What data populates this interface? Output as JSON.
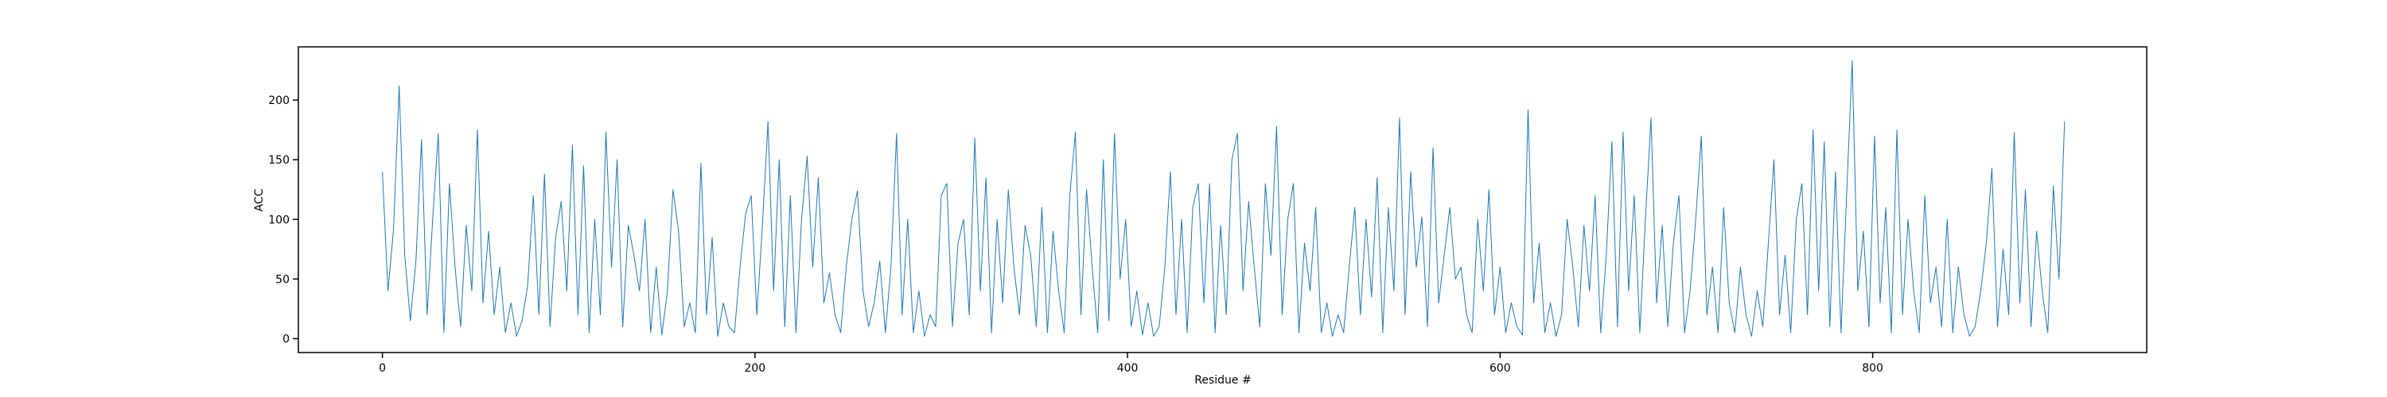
{
  "chart_data": {
    "type": "line",
    "x_label": "Residue #",
    "y_label": "ACC",
    "x": [
      0,
      3,
      6,
      9,
      12,
      15,
      18,
      21,
      24,
      27,
      30,
      33,
      36,
      39,
      42,
      45,
      48,
      51,
      54,
      57,
      60,
      63,
      66,
      69,
      72,
      75,
      78,
      81,
      84,
      87,
      90,
      93,
      96,
      99,
      102,
      105,
      108,
      111,
      114,
      117,
      120,
      123,
      126,
      129,
      132,
      135,
      138,
      141,
      144,
      147,
      150,
      153,
      156,
      159,
      162,
      165,
      168,
      171,
      174,
      177,
      180,
      183,
      186,
      189,
      192,
      195,
      198,
      201,
      204,
      207,
      210,
      213,
      216,
      219,
      222,
      225,
      228,
      231,
      234,
      237,
      240,
      243,
      246,
      249,
      252,
      255,
      258,
      261,
      264,
      267,
      270,
      273,
      276,
      279,
      282,
      285,
      288,
      291,
      294,
      297,
      300,
      303,
      306,
      309,
      312,
      315,
      318,
      321,
      324,
      327,
      330,
      333,
      336,
      339,
      342,
      345,
      348,
      351,
      354,
      357,
      360,
      363,
      366,
      369,
      372,
      375,
      378,
      381,
      384,
      387,
      390,
      393,
      396,
      399,
      402,
      405,
      408,
      411,
      414,
      417,
      420,
      423,
      426,
      429,
      432,
      435,
      438,
      441,
      444,
      447,
      450,
      453,
      456,
      459,
      462,
      465,
      468,
      471,
      474,
      477,
      480,
      483,
      486,
      489,
      492,
      495,
      498,
      501,
      504,
      507,
      510,
      513,
      516,
      519,
      522,
      525,
      528,
      531,
      534,
      537,
      540,
      543,
      546,
      549,
      552,
      555,
      558,
      561,
      564,
      567,
      570,
      573,
      576,
      579,
      582,
      585,
      588,
      591,
      594,
      597,
      600,
      603,
      606,
      609,
      612,
      615,
      618,
      621,
      624,
      627,
      630,
      633,
      636,
      639,
      642,
      645,
      648,
      651,
      654,
      657,
      660,
      663,
      666,
      669,
      672,
      675,
      678,
      681,
      684,
      687,
      690,
      693,
      696,
      699,
      702,
      705,
      708,
      711,
      714,
      717,
      720,
      723,
      726,
      729,
      732,
      735,
      738,
      741,
      744,
      747,
      750,
      753,
      756,
      759,
      762,
      765,
      768,
      771,
      774,
      777,
      780,
      783,
      786,
      789,
      792,
      795,
      798,
      801,
      804,
      807,
      810,
      813,
      816,
      819,
      822,
      825,
      828,
      831,
      834,
      837,
      840,
      843,
      846,
      849,
      852,
      855,
      858,
      861,
      864,
      867,
      870,
      873,
      876,
      879,
      882,
      885,
      888,
      891,
      894,
      897,
      900,
      903
    ],
    "series": [
      {
        "color": "#1f77b4",
        "values": [
          140,
          40,
          92,
          212,
          70,
          15,
          65,
          167,
          20,
          100,
          172,
          5,
          130,
          60,
          10,
          95,
          40,
          175,
          30,
          90,
          20,
          60,
          5,
          30,
          2,
          15,
          45,
          120,
          20,
          138,
          10,
          85,
          115,
          40,
          162,
          20,
          145,
          5,
          100,
          20,
          173,
          60,
          150,
          10,
          95,
          70,
          40,
          100,
          5,
          60,
          3,
          40,
          125,
          90,
          10,
          30,
          5,
          147,
          20,
          85,
          2,
          30,
          10,
          5,
          60,
          105,
          120,
          20,
          95,
          182,
          40,
          150,
          10,
          120,
          5,
          100,
          153,
          60,
          135,
          30,
          55,
          20,
          5,
          60,
          100,
          124,
          40,
          10,
          30,
          65,
          5,
          60,
          172,
          20,
          100,
          5,
          40,
          2,
          20,
          10,
          120,
          130,
          10,
          80,
          100,
          20,
          168,
          40,
          135,
          5,
          100,
          30,
          125,
          60,
          20,
          95,
          70,
          10,
          110,
          5,
          90,
          40,
          5,
          120,
          173,
          20,
          125,
          60,
          5,
          150,
          15,
          172,
          50,
          100,
          10,
          40,
          3,
          30,
          2,
          10,
          60,
          140,
          20,
          100,
          5,
          110,
          130,
          30,
          130,
          5,
          95,
          20,
          150,
          172,
          40,
          115,
          60,
          10,
          130,
          70,
          178,
          20,
          100,
          130,
          5,
          80,
          40,
          110,
          5,
          30,
          2,
          20,
          5,
          60,
          110,
          20,
          100,
          35,
          135,
          5,
          110,
          40,
          185,
          20,
          140,
          60,
          102,
          10,
          160,
          30,
          70,
          110,
          50,
          60,
          20,
          5,
          100,
          40,
          125,
          20,
          60,
          5,
          30,
          10,
          3,
          192,
          30,
          80,
          5,
          30,
          2,
          20,
          100,
          60,
          10,
          95,
          40,
          120,
          5,
          70,
          165,
          10,
          173,
          40,
          120,
          5,
          100,
          185,
          30,
          95,
          10,
          80,
          120,
          5,
          40,
          100,
          170,
          20,
          60,
          5,
          110,
          30,
          5,
          60,
          20,
          2,
          40,
          10,
          80,
          150,
          20,
          70,
          5,
          100,
          130,
          20,
          175,
          40,
          165,
          10,
          140,
          5,
          120,
          233,
          40,
          90,
          10,
          170,
          30,
          110,
          5,
          175,
          20,
          100,
          40,
          5,
          120,
          30,
          60,
          10,
          100,
          5,
          60,
          20,
          2,
          10,
          40,
          80,
          143,
          10,
          75,
          20,
          173,
          30,
          125,
          10,
          90,
          40,
          5,
          128,
          50,
          182
        ]
      }
    ],
    "xlim": [
      -45.1,
      947.1
    ],
    "ylim": [
      -11.65,
      244.65
    ],
    "xticks": [
      0,
      200,
      400,
      600,
      800
    ],
    "yticks": [
      0,
      50,
      100,
      150,
      200
    ]
  }
}
